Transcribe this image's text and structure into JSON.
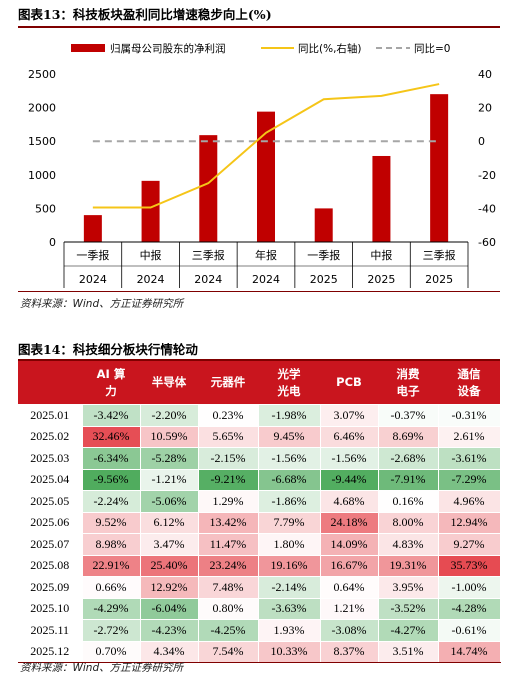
{
  "figure1": {
    "title": "图表13：科技板块盈利同比增速稳步向上(%)",
    "source": "资料来源：Wind、方正证券研究所",
    "chart_data": {
      "type": "bar+line",
      "categories": [
        {
          "line1": "一季报",
          "line2": "2024"
        },
        {
          "line1": "中报",
          "line2": "2024"
        },
        {
          "line1": "三季报",
          "line2": "2024"
        },
        {
          "line1": "年报",
          "line2": "2024"
        },
        {
          "line1": "一季报",
          "line2": "2025"
        },
        {
          "line1": "中报",
          "line2": "2025"
        },
        {
          "line1": "三季报",
          "line2": "2025"
        }
      ],
      "series": [
        {
          "name": "归属母公司股东的净利润",
          "type": "bar",
          "axis": "left",
          "color": "#c00000",
          "values": [
            400,
            910,
            1590,
            1940,
            500,
            1280,
            2200
          ]
        },
        {
          "name": "同比(%,右轴)",
          "type": "line",
          "axis": "right",
          "color": "#f5c518",
          "values": [
            -39.5,
            -39.5,
            -25,
            5,
            25,
            27,
            34
          ]
        },
        {
          "name": "同比=0",
          "type": "line",
          "axis": "right",
          "style": "dashed",
          "color": "#a6a6a6",
          "values": [
            0,
            0,
            0,
            0,
            0,
            0,
            0
          ]
        }
      ],
      "y_left": {
        "min": 0,
        "max": 2500,
        "ticks": [
          0,
          500,
          1000,
          1500,
          2000,
          2500
        ]
      },
      "y_right": {
        "min": -60,
        "max": 40,
        "ticks": [
          -60,
          -40,
          -20,
          0,
          20,
          40
        ]
      },
      "legend_position": "top"
    }
  },
  "figure2": {
    "title": "图表14：科技细分板块行情轮动",
    "source": "资料来源：Wind、方正证券研究所",
    "colors": {
      "header_bg": "#c9151e",
      "positive": "#e64b52",
      "negative": "#48a857",
      "neutral": "#ffffff"
    },
    "chart_data": {
      "type": "table",
      "columns": [
        {
          "line1": "AI 算",
          "line2": "力"
        },
        {
          "line1": "半导体",
          "line2": ""
        },
        {
          "line1": "元器件",
          "line2": ""
        },
        {
          "line1": "光学",
          "line2": "光电"
        },
        {
          "line1": "PCB",
          "line2": ""
        },
        {
          "line1": "消费",
          "line2": "电子"
        },
        {
          "line1": "通信",
          "line2": "设备"
        }
      ],
      "rows": [
        {
          "label": "2025.01",
          "values": [
            -3.42,
            -2.2,
            0.23,
            -1.98,
            3.07,
            -0.37,
            -0.31
          ]
        },
        {
          "label": "2025.02",
          "values": [
            32.46,
            10.59,
            5.65,
            9.45,
            6.46,
            8.69,
            2.61
          ]
        },
        {
          "label": "2025.03",
          "values": [
            -6.34,
            -5.28,
            -2.15,
            -1.56,
            -1.56,
            -2.68,
            -3.61
          ]
        },
        {
          "label": "2025.04",
          "values": [
            -9.56,
            -1.21,
            -9.21,
            -6.68,
            -9.44,
            -7.91,
            -7.29
          ]
        },
        {
          "label": "2025.05",
          "values": [
            -2.24,
            -5.06,
            1.29,
            -1.86,
            4.68,
            0.16,
            4.96
          ]
        },
        {
          "label": "2025.06",
          "values": [
            9.52,
            6.12,
            13.42,
            7.79,
            24.18,
            8.0,
            12.94
          ]
        },
        {
          "label": "2025.07",
          "values": [
            8.98,
            3.47,
            11.47,
            1.8,
            14.09,
            4.83,
            9.27
          ]
        },
        {
          "label": "2025.08",
          "values": [
            22.91,
            25.4,
            23.24,
            19.16,
            16.67,
            19.31,
            35.73
          ]
        },
        {
          "label": "2025.09",
          "values": [
            0.66,
            12.92,
            7.48,
            -2.14,
            0.64,
            3.95,
            -1.0
          ]
        },
        {
          "label": "2025.10",
          "values": [
            -4.29,
            -6.04,
            0.8,
            -3.63,
            1.21,
            -3.52,
            -4.28
          ]
        },
        {
          "label": "2025.11",
          "values": [
            -2.72,
            -4.23,
            -4.25,
            1.93,
            -3.08,
            -4.27,
            -0.61
          ]
        },
        {
          "label": "2025.12",
          "values": [
            0.7,
            4.34,
            7.54,
            10.33,
            8.37,
            3.51,
            14.74
          ]
        }
      ]
    }
  }
}
